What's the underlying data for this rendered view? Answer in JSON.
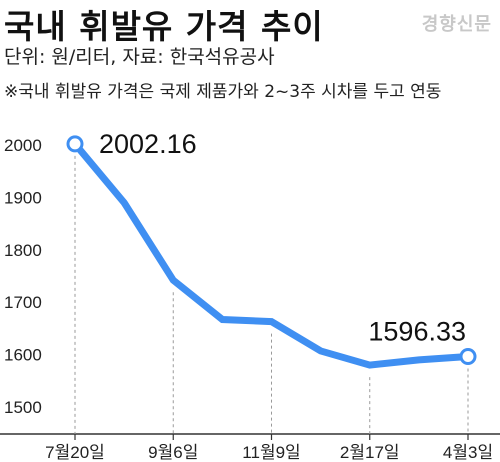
{
  "title": "국내 휘발유 가격 추이",
  "watermark": "경향신문",
  "unit_text": "단위: 원/리터, 자료: 한국석유공사",
  "note_text": "※국내 휘발유 가격은 국제 제품가와 2~3주 시차를 두고 연동",
  "colors": {
    "line": "#3f8ff2",
    "axis": "#333333",
    "tick": "#9a9a9a"
  },
  "chart_data": {
    "type": "line",
    "title": "국내 휘발유 가격 추이",
    "xlabel": "",
    "ylabel": "",
    "ylim": [
      1500,
      2000
    ],
    "yticks": [
      2000,
      1900,
      1800,
      1700,
      1600,
      1500
    ],
    "x_tick_labels": [
      "7월20일",
      "9월6일",
      "11월9일",
      "2월17일",
      "4월3일"
    ],
    "values": [
      2002.16,
      1890,
      1742,
      1667,
      1663,
      1607,
      1580,
      1590,
      1596.33
    ],
    "annotations": [
      {
        "index": 0,
        "text": "2002.16"
      },
      {
        "index": 8,
        "text": "1596.33"
      }
    ],
    "grid": false
  }
}
